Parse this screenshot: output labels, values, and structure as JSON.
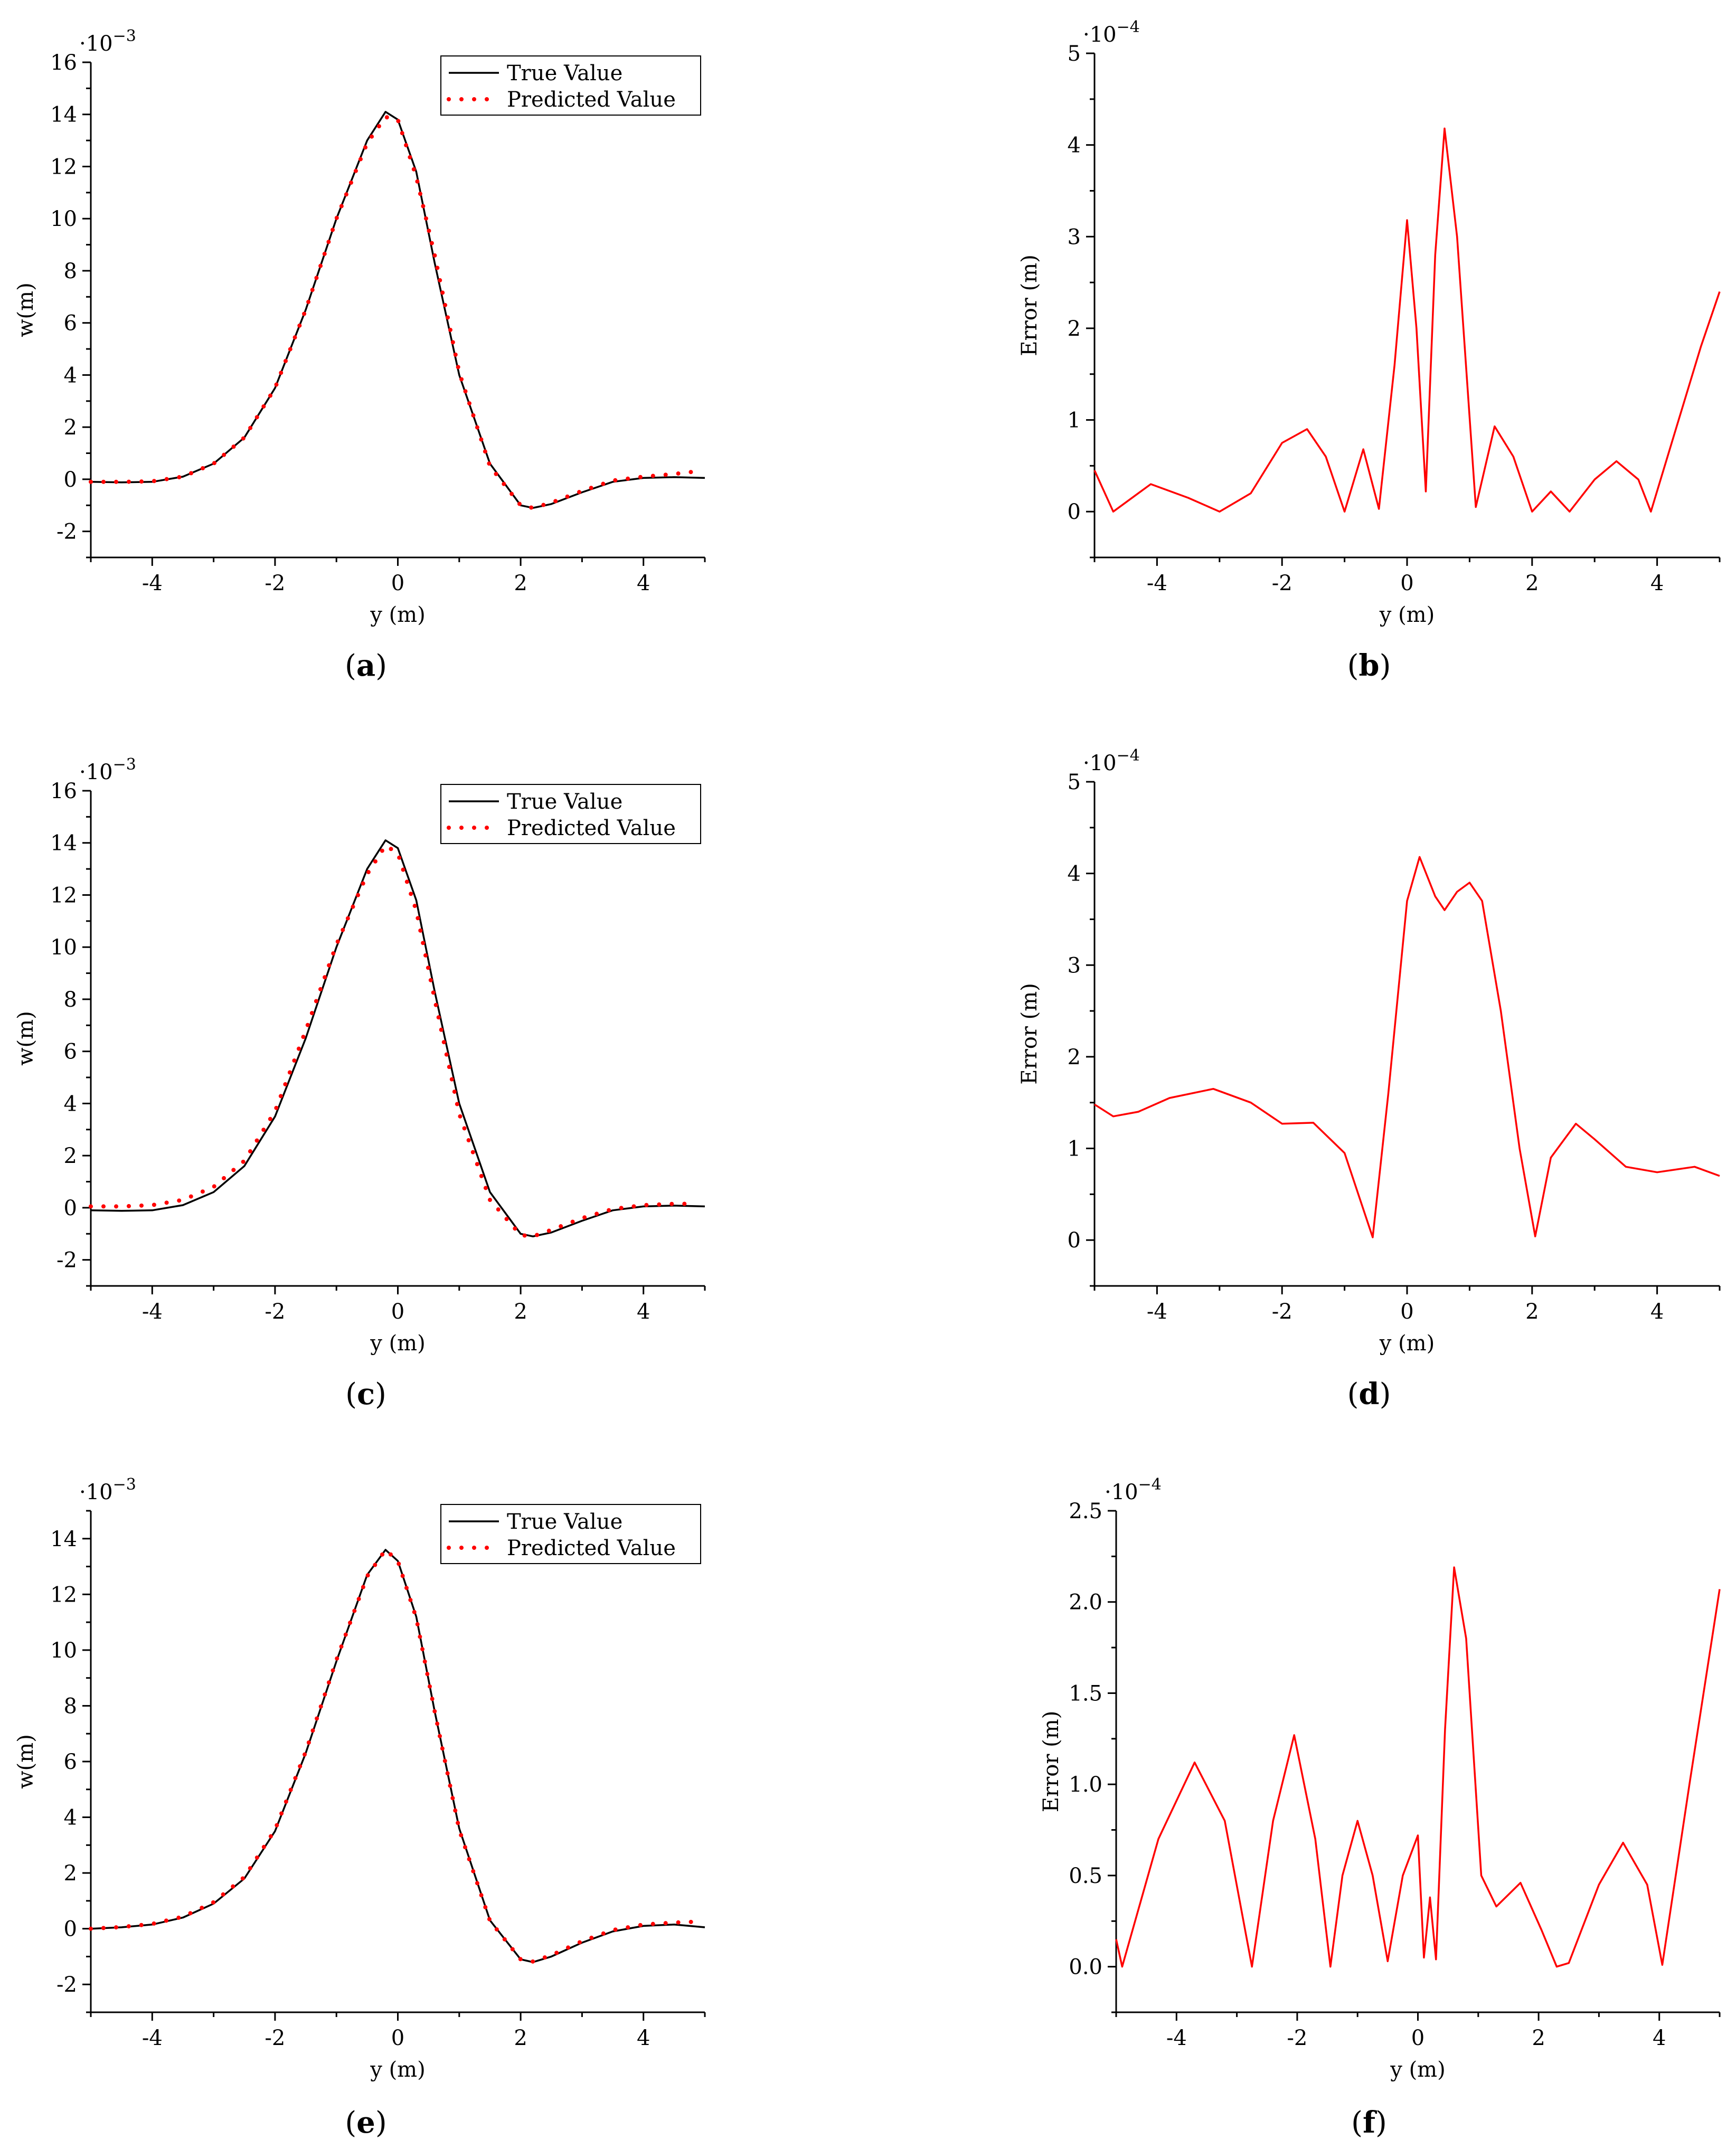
{
  "figure": {
    "panel_captions": [
      "(a)",
      "(b)",
      "(c)",
      "(d)",
      "(e)",
      "(f)"
    ]
  },
  "chart_data": [
    {
      "id": "a",
      "type": "line",
      "caption": "a",
      "xlabel": "y (m)",
      "ylabel": "w(m)",
      "multiplier": "10^-3",
      "xlim": [
        -5,
        5
      ],
      "ylim": [
        -3,
        16
      ],
      "xticks": [
        -4,
        -2,
        0,
        2,
        4
      ],
      "yticks": [
        -2,
        0,
        2,
        4,
        6,
        8,
        10,
        12,
        14,
        16
      ],
      "legend": {
        "position": "top-right",
        "entries": [
          "True Value",
          "Predicted Value"
        ]
      },
      "series": [
        {
          "name": "True Value",
          "style": "solid",
          "color": "#000000",
          "x": [
            -5,
            -4.5,
            -4,
            -3.5,
            -3,
            -2.5,
            -2,
            -1.5,
            -1,
            -0.5,
            -0.2,
            0,
            0.3,
            0.6,
            1,
            1.5,
            2,
            2.2,
            2.5,
            3,
            3.5,
            4,
            4.5,
            5
          ],
          "y": [
            -0.1,
            -0.12,
            -0.1,
            0.1,
            0.6,
            1.6,
            3.5,
            6.5,
            10.0,
            13.0,
            14.1,
            13.8,
            11.8,
            8.3,
            4.0,
            0.6,
            -1.0,
            -1.1,
            -0.95,
            -0.5,
            -0.1,
            0.05,
            0.08,
            0.05
          ]
        },
        {
          "name": "Predicted Value",
          "style": "dotted",
          "color": "#ff0000",
          "x": [
            -5,
            -4.5,
            -4,
            -3.5,
            -3,
            -2.5,
            -2,
            -1.5,
            -1,
            -0.5,
            -0.2,
            0,
            0.3,
            0.6,
            1,
            1.5,
            2,
            2.2,
            2.5,
            3,
            3.5,
            4,
            4.5,
            4.85
          ],
          "y": [
            -0.1,
            -0.1,
            -0.08,
            0.1,
            0.6,
            1.6,
            3.5,
            6.5,
            10.0,
            12.9,
            13.9,
            13.8,
            11.6,
            8.6,
            4.1,
            0.5,
            -1.0,
            -1.1,
            -0.9,
            -0.45,
            -0.05,
            0.1,
            0.2,
            0.3
          ]
        }
      ]
    },
    {
      "id": "b",
      "type": "line",
      "caption": "b",
      "xlabel": "y (m)",
      "ylabel": "Error (m)",
      "multiplier": "10^-4",
      "xlim": [
        -5,
        5
      ],
      "ylim": [
        -0.5,
        5
      ],
      "xticks": [
        -4,
        -2,
        0,
        2,
        4
      ],
      "yticks": [
        0,
        1,
        2,
        3,
        4,
        5
      ],
      "series": [
        {
          "style": "solid",
          "color": "#ff0000",
          "x": [
            -5,
            -4.7,
            -4.1,
            -3.5,
            -3.0,
            -2.5,
            -2.0,
            -1.6,
            -1.3,
            -1.0,
            -0.7,
            -0.45,
            -0.2,
            0.0,
            0.15,
            0.3,
            0.45,
            0.6,
            0.8,
            1.1,
            1.4,
            1.7,
            2.0,
            2.3,
            2.6,
            3.0,
            3.35,
            3.7,
            3.9,
            4.3,
            4.7,
            5.0
          ],
          "y": [
            0.45,
            0.0,
            0.3,
            0.15,
            0.0,
            0.2,
            0.75,
            0.9,
            0.6,
            0.0,
            0.68,
            0.03,
            1.6,
            3.18,
            2.0,
            0.22,
            2.8,
            4.18,
            3.0,
            0.05,
            0.93,
            0.6,
            0.0,
            0.22,
            0.0,
            0.35,
            0.55,
            0.35,
            0.0,
            0.9,
            1.8,
            2.4
          ]
        }
      ]
    },
    {
      "id": "c",
      "type": "line",
      "caption": "c",
      "xlabel": "y (m)",
      "ylabel": "w(m)",
      "multiplier": "10^-3",
      "xlim": [
        -5,
        5
      ],
      "ylim": [
        -3,
        16
      ],
      "xticks": [
        -4,
        -2,
        0,
        2,
        4
      ],
      "yticks": [
        -2,
        0,
        2,
        4,
        6,
        8,
        10,
        12,
        14,
        16
      ],
      "legend": {
        "position": "top-right",
        "entries": [
          "True Value",
          "Predicted Value"
        ]
      },
      "series": [
        {
          "name": "True Value",
          "style": "solid",
          "color": "#000000",
          "x": [
            -5,
            -4.5,
            -4,
            -3.5,
            -3,
            -2.5,
            -2,
            -1.5,
            -1,
            -0.5,
            -0.2,
            0,
            0.3,
            0.6,
            1,
            1.5,
            2,
            2.2,
            2.5,
            3,
            3.5,
            4,
            4.5,
            5
          ],
          "y": [
            -0.1,
            -0.12,
            -0.1,
            0.1,
            0.6,
            1.6,
            3.5,
            6.5,
            10.0,
            13.0,
            14.1,
            13.8,
            11.8,
            8.3,
            4.0,
            0.6,
            -1.0,
            -1.1,
            -0.95,
            -0.5,
            -0.1,
            0.05,
            0.08,
            0.05
          ]
        },
        {
          "name": "Predicted Value",
          "style": "dotted",
          "color": "#ff0000",
          "x": [
            -5,
            -4.5,
            -4,
            -3.5,
            -3,
            -2.5,
            -2,
            -1.5,
            -1,
            -0.5,
            -0.2,
            0,
            0.3,
            0.6,
            1,
            1.5,
            2,
            2.2,
            2.5,
            3,
            3.5,
            4,
            4.5,
            4.85
          ],
          "y": [
            0.05,
            0.05,
            0.1,
            0.3,
            0.8,
            1.8,
            3.7,
            6.8,
            10.1,
            12.8,
            13.9,
            13.6,
            11.4,
            8.0,
            3.6,
            0.3,
            -1.05,
            -1.1,
            -0.85,
            -0.4,
            -0.05,
            0.1,
            0.15,
            0.15
          ]
        }
      ]
    },
    {
      "id": "d",
      "type": "line",
      "caption": "d",
      "xlabel": "y (m)",
      "ylabel": "Error (m)",
      "multiplier": "10^-4",
      "xlim": [
        -5,
        5
      ],
      "ylim": [
        -0.5,
        5
      ],
      "xticks": [
        -4,
        -2,
        0,
        2,
        4
      ],
      "yticks": [
        0,
        1,
        2,
        3,
        4,
        5
      ],
      "series": [
        {
          "style": "solid",
          "color": "#ff0000",
          "x": [
            -5,
            -4.7,
            -4.3,
            -3.8,
            -3.1,
            -2.5,
            -2.0,
            -1.5,
            -1.0,
            -0.55,
            -0.3,
            0.0,
            0.2,
            0.45,
            0.6,
            0.8,
            1.0,
            1.2,
            1.5,
            1.8,
            2.05,
            2.3,
            2.7,
            3.0,
            3.5,
            4.0,
            4.6,
            5.0
          ],
          "y": [
            1.48,
            1.35,
            1.4,
            1.55,
            1.65,
            1.5,
            1.27,
            1.28,
            0.95,
            0.03,
            1.6,
            3.7,
            4.18,
            3.75,
            3.6,
            3.8,
            3.9,
            3.7,
            2.5,
            1.0,
            0.04,
            0.9,
            1.27,
            1.1,
            0.8,
            0.74,
            0.8,
            0.7
          ]
        }
      ]
    },
    {
      "id": "e",
      "type": "line",
      "caption": "e",
      "xlabel": "y (m)",
      "ylabel": "w(m)",
      "multiplier": "10^-3",
      "xlim": [
        -5,
        5
      ],
      "ylim": [
        -3,
        15
      ],
      "xticks": [
        -4,
        -2,
        0,
        2,
        4
      ],
      "yticks": [
        -2,
        0,
        2,
        4,
        6,
        8,
        10,
        12,
        14
      ],
      "legend": {
        "position": "top-right",
        "entries": [
          "True Value",
          "Predicted Value"
        ]
      },
      "series": [
        {
          "name": "True Value",
          "style": "solid",
          "color": "#000000",
          "x": [
            -5,
            -4.5,
            -4,
            -3.5,
            -3,
            -2.5,
            -2,
            -1.5,
            -1,
            -0.5,
            -0.2,
            0,
            0.3,
            0.6,
            1,
            1.5,
            2,
            2.2,
            2.5,
            3,
            3.5,
            4,
            4.5,
            5
          ],
          "y": [
            0.0,
            0.05,
            0.15,
            0.4,
            0.9,
            1.8,
            3.5,
            6.3,
            9.6,
            12.7,
            13.6,
            13.2,
            11.2,
            7.8,
            3.6,
            0.3,
            -1.1,
            -1.2,
            -1.0,
            -0.5,
            -0.1,
            0.1,
            0.15,
            0.05
          ]
        },
        {
          "name": "Predicted Value",
          "style": "dotted",
          "color": "#ff0000",
          "x": [
            -5,
            -4.5,
            -4,
            -3.5,
            -3,
            -2.5,
            -2,
            -1.5,
            -1,
            -0.5,
            -0.2,
            0,
            0.3,
            0.6,
            1,
            1.5,
            2,
            2.2,
            2.5,
            3,
            3.5,
            4,
            4.5,
            4.85
          ],
          "y": [
            0.0,
            0.06,
            0.17,
            0.43,
            0.95,
            1.85,
            3.55,
            6.35,
            9.65,
            12.65,
            13.6,
            13.2,
            11.15,
            7.8,
            3.55,
            0.28,
            -1.1,
            -1.18,
            -0.95,
            -0.45,
            -0.05,
            0.15,
            0.22,
            0.25
          ]
        }
      ]
    },
    {
      "id": "f",
      "type": "line",
      "caption": "f",
      "xlabel": "y (m)",
      "ylabel": "Error (m)",
      "multiplier": "10^-4",
      "xlim": [
        -5,
        5
      ],
      "ylim": [
        -0.25,
        2.5
      ],
      "xticks": [
        -4,
        -2,
        0,
        2,
        4
      ],
      "yticks": [
        "0.0",
        "0.5",
        "1.0",
        "1.5",
        "2.0",
        "2.5"
      ],
      "series": [
        {
          "style": "solid",
          "color": "#ff0000",
          "x": [
            -5,
            -4.9,
            -4.3,
            -3.7,
            -3.2,
            -2.75,
            -2.4,
            -2.05,
            -1.7,
            -1.45,
            -1.25,
            -1.0,
            -0.75,
            -0.5,
            -0.25,
            0.0,
            0.1,
            0.2,
            0.3,
            0.45,
            0.6,
            0.8,
            1.05,
            1.3,
            1.7,
            2.05,
            2.3,
            2.5,
            3.0,
            3.4,
            3.8,
            4.05,
            4.5,
            5.0
          ],
          "y": [
            0.15,
            0.0,
            0.7,
            1.12,
            0.8,
            0.0,
            0.8,
            1.27,
            0.7,
            0.0,
            0.5,
            0.8,
            0.5,
            0.03,
            0.5,
            0.72,
            0.05,
            0.38,
            0.04,
            1.3,
            2.19,
            1.8,
            0.5,
            0.33,
            0.46,
            0.2,
            0.0,
            0.02,
            0.45,
            0.68,
            0.45,
            0.01,
            1.0,
            2.07
          ]
        }
      ]
    }
  ]
}
